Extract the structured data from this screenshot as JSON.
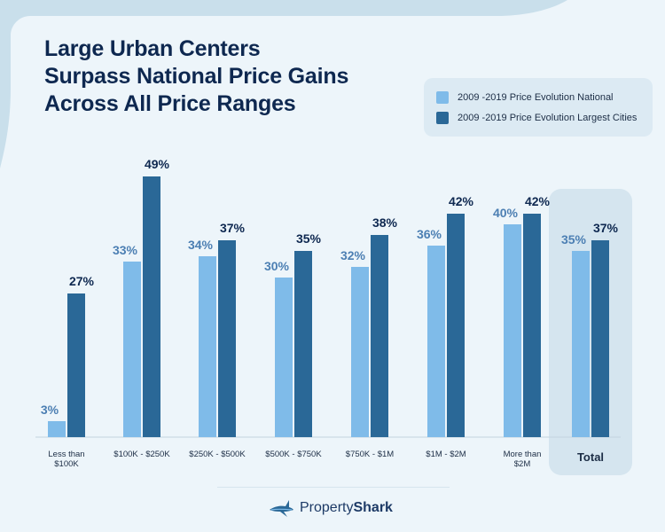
{
  "title_lines": [
    "Large Urban Centers",
    "Surpass National Price Gains",
    "Across All Price Ranges"
  ],
  "legend": [
    {
      "label": "2009 -2019 Price Evolution National",
      "color": "#7fbbe9"
    },
    {
      "label": "2009 -2019 Price Evolution Largest Cities",
      "color": "#2a6897"
    }
  ],
  "brand": {
    "part1": "Property",
    "part2": "Shark",
    "icon": "shark-logo-icon"
  },
  "colors": {
    "national": "#7fbbe9",
    "cities": "#2a6897",
    "national_label": "#4c7fb3",
    "cities_label": "#0e2850",
    "highlight": "#d5e5ef"
  },
  "chart_data": {
    "type": "bar",
    "categories": [
      [
        "Less than",
        "$100K"
      ],
      [
        "$100K - $250K"
      ],
      [
        "$250K - $500K"
      ],
      [
        "$500K - $750K"
      ],
      [
        "$750K - $1M"
      ],
      [
        "$1M - $2M"
      ],
      [
        "More than",
        "$2M"
      ],
      [
        "Total"
      ]
    ],
    "series": [
      {
        "name": "2009 -2019 Price Evolution National",
        "values": [
          3,
          33,
          34,
          30,
          32,
          36,
          40,
          35
        ]
      },
      {
        "name": "2009 -2019 Price Evolution Largest Cities",
        "values": [
          27,
          49,
          37,
          35,
          38,
          42,
          42,
          37
        ]
      }
    ],
    "value_suffix": "%",
    "ylim": [
      0,
      50
    ],
    "highlight_category": "Total",
    "grid": false,
    "legend_position": "top-right"
  }
}
